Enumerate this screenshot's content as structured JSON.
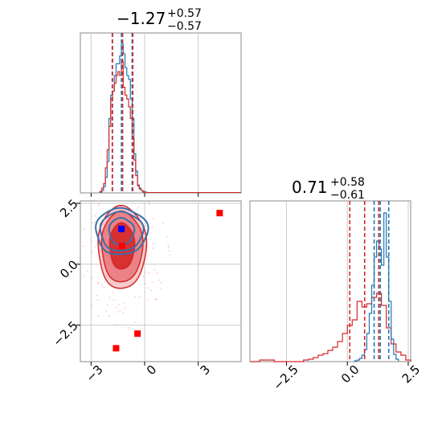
{
  "chart_data": {
    "type": "corner",
    "grid": true,
    "colors": {
      "blue": "#1f77b4",
      "red": "#d62728",
      "grid": "#cccccc",
      "axis": "#888888"
    },
    "x_param": {
      "range": [
        -3.6,
        5.4
      ],
      "ticks": [
        -3,
        0,
        3
      ],
      "tick_labels": [
        "−3",
        "0",
        "3"
      ],
      "title_value": "−1.27",
      "title_upper": "+0.57",
      "title_lower": "−0.57",
      "blue_quantiles": [
        -1.8,
        -1.3,
        -0.7
      ],
      "red_quantiles": [
        -1.85,
        -1.27,
        -0.7
      ]
    },
    "y_param": {
      "range": [
        -4.0,
        2.6
      ],
      "ticks": [
        -2.5,
        0.0,
        2.5
      ],
      "tick_labels": [
        "−2.5",
        "0.0",
        "2.5"
      ],
      "title_value": "0.71",
      "title_upper": "+0.58",
      "title_lower": "−0.61",
      "blue_quantiles": [
        1.1,
        1.35,
        1.7
      ],
      "red_quantiles": [
        0.1,
        0.71,
        1.29
      ]
    },
    "hist_x_blue": {
      "bins": [
        -2.5,
        -2.4,
        -2.3,
        -2.2,
        -2.1,
        -2.0,
        -1.9,
        -1.8,
        -1.7,
        -1.6,
        -1.5,
        -1.4,
        -1.3,
        -1.2,
        -1.1,
        -1.0,
        -0.9,
        -0.8,
        -0.7,
        -0.6,
        -0.5,
        -0.4,
        -0.3,
        -0.2,
        -0.1,
        0.0,
        0.1
      ],
      "values": [
        1,
        3,
        8,
        20,
        40,
        95,
        125,
        130,
        150,
        165,
        165,
        175,
        190,
        178,
        160,
        150,
        145,
        120,
        95,
        50,
        28,
        10,
        6,
        3,
        2,
        1
      ]
    },
    "hist_x_red": {
      "bins": [
        -2.5,
        -2.4,
        -2.3,
        -2.2,
        -2.1,
        -2.0,
        -1.9,
        -1.8,
        -1.7,
        -1.6,
        -1.5,
        -1.4,
        -1.3,
        -1.2,
        -1.1,
        -1.0,
        -0.9,
        -0.8,
        -0.7,
        -0.6,
        -0.5,
        -0.4,
        -0.3,
        -0.2,
        -0.1,
        0.0,
        0.1
      ],
      "values": [
        2,
        6,
        12,
        32,
        55,
        85,
        120,
        130,
        140,
        150,
        155,
        150,
        168,
        135,
        125,
        120,
        110,
        95,
        70,
        42,
        22,
        9,
        5,
        3,
        1,
        1
      ]
    },
    "hist_y_blue": {
      "bins": [
        0.3,
        0.4,
        0.5,
        0.6,
        0.7,
        0.8,
        0.9,
        1.0,
        1.1,
        1.2,
        1.3,
        1.4,
        1.5,
        1.6,
        1.7,
        1.8,
        1.9,
        2.0,
        2.1
      ],
      "values": [
        1,
        2,
        4,
        8,
        15,
        35,
        60,
        95,
        130,
        150,
        140,
        120,
        185,
        130,
        75,
        28,
        9,
        3
      ]
    },
    "hist_y_red": {
      "bins": [
        -4.0,
        -3.8,
        -3.6,
        -3.4,
        -3.2,
        -3.0,
        -2.8,
        -2.6,
        -2.4,
        -2.2,
        -2.0,
        -1.8,
        -1.6,
        -1.4,
        -1.2,
        -1.0,
        -0.8,
        -0.6,
        -0.4,
        -0.2,
        0.0,
        0.2,
        0.4,
        0.6,
        0.8,
        1.0,
        1.2,
        1.4,
        1.6,
        1.8,
        2.0,
        2.2,
        2.4,
        2.6
      ],
      "values": [
        0,
        0,
        2,
        2,
        2,
        0,
        0,
        0,
        0,
        0,
        0,
        2,
        3,
        5,
        8,
        10,
        14,
        18,
        25,
        35,
        45,
        52,
        75,
        68,
        72,
        80,
        85,
        70,
        42,
        22,
        12,
        8,
        2
      ]
    },
    "contours_red": [
      {
        "cx": -1.27,
        "cy": 0.75,
        "rx": 0.7,
        "ry": 0.95,
        "level": 0.39
      },
      {
        "cx": -1.27,
        "cy": 0.72,
        "rx": 1.15,
        "ry": 1.45,
        "level": 0.86
      },
      {
        "cx": -1.27,
        "cy": 0.7,
        "rx": 1.35,
        "ry": 1.7,
        "level": 0.95
      }
    ],
    "contours_blue": [
      {
        "cx": -1.3,
        "cy": 1.35,
        "rx": 0.7,
        "ry": 0.55,
        "level": 0.39
      },
      {
        "cx": -1.3,
        "cy": 1.35,
        "rx": 1.2,
        "ry": 0.8,
        "level": 0.86
      },
      {
        "cx": -1.3,
        "cy": 1.35,
        "rx": 1.45,
        "ry": 0.95,
        "level": 0.95
      }
    ],
    "markers_red": [
      {
        "x": 4.2,
        "y": 2.1
      },
      {
        "x": -0.4,
        "y": -2.85
      },
      {
        "x": -1.6,
        "y": -3.45
      },
      {
        "x": -1.27,
        "y": 0.75
      }
    ],
    "markers_blue": [
      {
        "x": -1.3,
        "y": 1.45
      }
    ]
  }
}
